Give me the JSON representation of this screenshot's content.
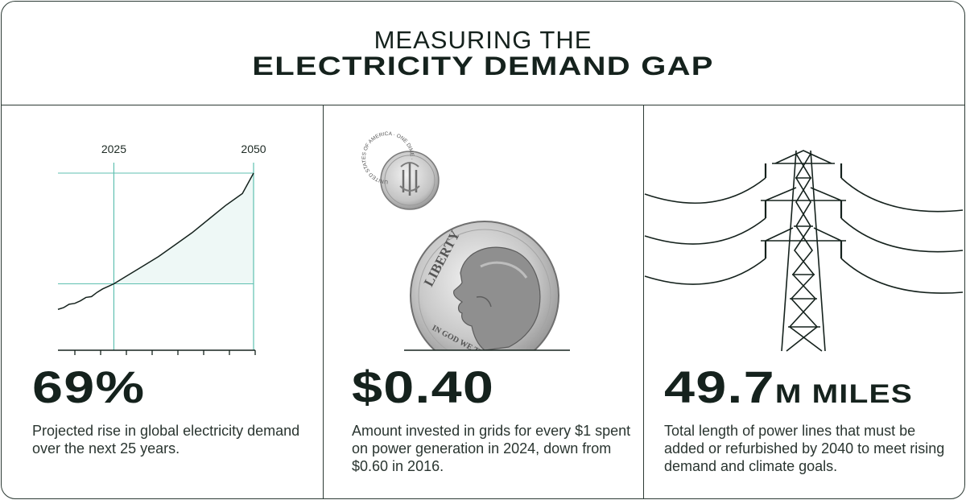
{
  "header": {
    "title_line1": "MEASURING THE",
    "title_line2": "ELECTRICITY DEMAND GAP"
  },
  "colors": {
    "teal": "#5fc0b0",
    "dark": "#15221d",
    "fill": "#eef8f6"
  },
  "panels": [
    {
      "stat": "69%",
      "description": "Projected rise in global electricity demand over the next 25 years."
    },
    {
      "stat": "$0.40",
      "description": "Amount invested in grids for every $1 spent on power generation in 2024, down from $0.60 in 2016."
    },
    {
      "stat_number": "49.7",
      "stat_unit": "M MILES",
      "description": "Total length of power lines that must be added or refurbished by 2040 to meet rising demand and climate goals."
    }
  ],
  "coin": {
    "big_text": "LIBERTY",
    "motto": "IN GOD WE TRUST",
    "small_text": "UNITED STATES OF AMERICA · ONE DIME ·"
  },
  "chart_data": {
    "type": "line",
    "x_markers": [
      "2025",
      "2050"
    ],
    "x": [
      2015,
      2016,
      2017,
      2018,
      2019,
      2020,
      2021,
      2022,
      2023,
      2024,
      2025,
      2027,
      2030,
      2033,
      2036,
      2039,
      2042,
      2045,
      2048,
      2050
    ],
    "y": [
      0.79,
      0.8,
      0.82,
      0.825,
      0.84,
      0.86,
      0.865,
      0.89,
      0.91,
      0.925,
      0.94,
      0.98,
      1.04,
      1.1,
      1.17,
      1.24,
      1.32,
      1.4,
      1.47,
      1.59
    ],
    "highlight": "area between curve and 2025 level, 2025–2050",
    "ticks_count": 8,
    "grid": false
  }
}
